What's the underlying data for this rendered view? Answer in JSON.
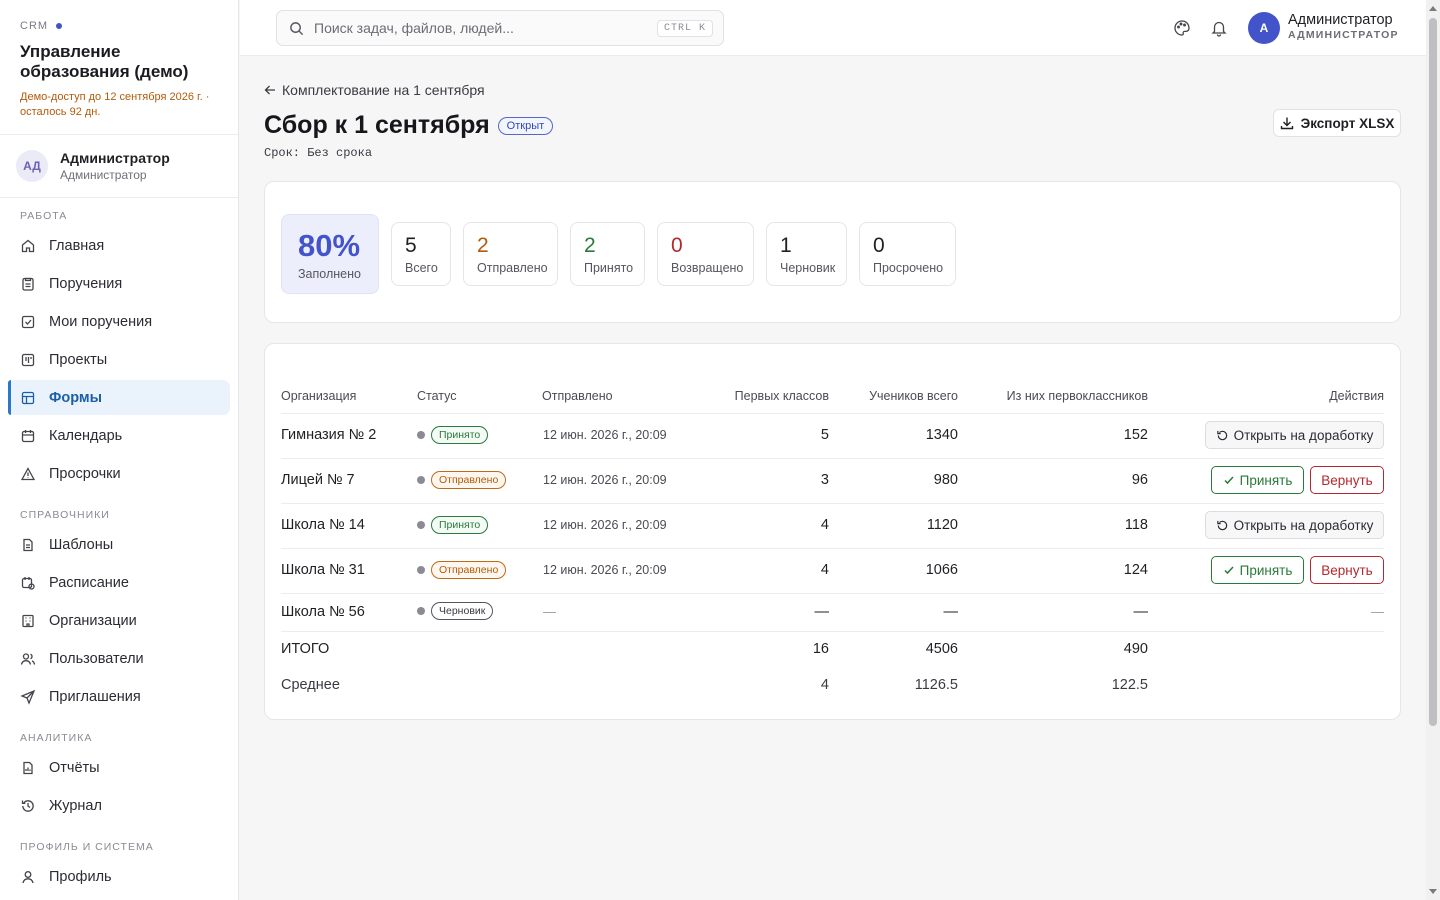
{
  "sidebar": {
    "crm_label": "CRM",
    "title": "Управление образования (демо)",
    "demo_notice": "Демо-доступ до 12 сентября 2026 г. · осталось 92 дн.",
    "user": {
      "initials": "АД",
      "name": "Администратор",
      "role": "Администратор"
    },
    "sections": {
      "work": "РАБОТА",
      "refs": "СПРАВОЧНИКИ",
      "analytics": "АНАЛИТИКА",
      "profile": "ПРОФИЛЬ И СИСТЕМА"
    },
    "items": [
      {
        "label": "Главная",
        "icon": "home-icon"
      },
      {
        "label": "Поручения",
        "icon": "clipboard-icon"
      },
      {
        "label": "Мои поручения",
        "icon": "checkbox-icon"
      },
      {
        "label": "Проекты",
        "icon": "kanban-icon"
      },
      {
        "label": "Формы",
        "icon": "table-icon",
        "active": true
      },
      {
        "label": "Календарь",
        "icon": "calendar-icon"
      },
      {
        "label": "Просрочки",
        "icon": "warning-icon"
      },
      {
        "label": "Шаблоны",
        "icon": "file-icon"
      },
      {
        "label": "Расписание",
        "icon": "calendar-clock-icon"
      },
      {
        "label": "Организации",
        "icon": "building-icon"
      },
      {
        "label": "Пользователи",
        "icon": "users-icon"
      },
      {
        "label": "Приглашения",
        "icon": "send-icon"
      },
      {
        "label": "Отчёты",
        "icon": "report-icon"
      },
      {
        "label": "Журнал",
        "icon": "history-icon"
      },
      {
        "label": "Профиль",
        "icon": "user-icon"
      }
    ]
  },
  "topbar": {
    "search_placeholder": "Поиск задач, файлов, людей...",
    "shortcut": "CTRL K",
    "user_initial": "А",
    "user_name": "Администратор",
    "user_role": "АДМИНИСТРАТОР"
  },
  "page": {
    "back_label": "Комплектование на 1 сентября",
    "title": "Сбор к 1 сентября",
    "status_badge": "Открыт",
    "deadline": "Срок: Без срока",
    "export_label": "Экспорт XLSX"
  },
  "stats": [
    {
      "value": "80%",
      "label": "Заполнено",
      "color": "#4353c9"
    },
    {
      "value": "5",
      "label": "Всего",
      "color": "#1f2024"
    },
    {
      "value": "2",
      "label": "Отправлено",
      "color": "#b35b0a"
    },
    {
      "value": "2",
      "label": "Принято",
      "color": "#2a7a3a"
    },
    {
      "value": "0",
      "label": "Возвращено",
      "color": "#b4282e"
    },
    {
      "value": "1",
      "label": "Черновик",
      "color": "#1f2024"
    },
    {
      "value": "0",
      "label": "Просрочено",
      "color": "#1f2024"
    }
  ],
  "table": {
    "headers": {
      "org": "Организация",
      "status": "Статус",
      "sent": "Отправлено",
      "first_classes": "Первых классов",
      "students": "Учеников всего",
      "first_graders": "Из них первоклассников",
      "actions": "Действия"
    },
    "rows": [
      {
        "org": "Гимназия № 2",
        "status": "Принято",
        "sent": "12 июн. 2026 г., 20:09",
        "first_classes": "5",
        "students": "1340",
        "first_graders": "152",
        "action": "Открыть на доработку"
      },
      {
        "org": "Лицей № 7",
        "status": "Отправлено",
        "sent": "12 июн. 2026 г., 20:09",
        "first_classes": "3",
        "students": "980",
        "first_graders": "96",
        "accept": "Принять",
        "return": "Вернуть"
      },
      {
        "org": "Школа № 14",
        "status": "Принято",
        "sent": "12 июн. 2026 г., 20:09",
        "first_classes": "4",
        "students": "1120",
        "first_graders": "118",
        "action": "Открыть на доработку"
      },
      {
        "org": "Школа № 31",
        "status": "Отправлено",
        "sent": "12 июн. 2026 г., 20:09",
        "first_classes": "4",
        "students": "1066",
        "first_graders": "124",
        "accept": "Принять",
        "return": "Вернуть"
      },
      {
        "org": "Школа № 56",
        "status": "Черновик",
        "sent": "—",
        "first_classes": "—",
        "students": "—",
        "first_graders": "—",
        "action": "—"
      }
    ],
    "total": {
      "label": "ИТОГО",
      "first_classes": "16",
      "students": "4506",
      "first_graders": "490"
    },
    "average": {
      "label": "Среднее",
      "first_classes": "4",
      "students": "1126.5",
      "first_graders": "122.5"
    }
  }
}
